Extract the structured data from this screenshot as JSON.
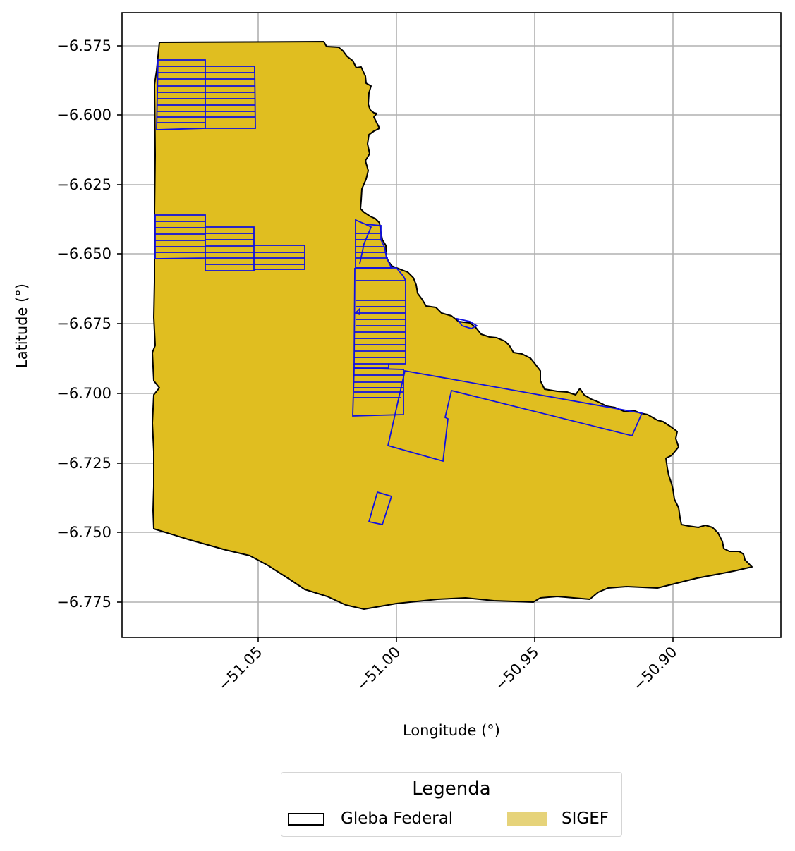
{
  "map": {
    "xlabel": "Longitude (°)",
    "ylabel": "Latitude (°)",
    "x_ticks": [
      "−51.05",
      "−51.00",
      "−50.95",
      "−50.90"
    ],
    "y_ticks": [
      "−6.575",
      "−6.600",
      "−6.625",
      "−6.650",
      "−6.675",
      "−6.700",
      "−6.725",
      "−6.750",
      "−6.775"
    ],
    "grid": true,
    "colors": {
      "gleba_fill": "#e0be20",
      "gleba_edge": "#000000",
      "sigef_edge": "#1010e0",
      "legend_sigef": "#e6d37a",
      "grid": "#b0b0b0"
    }
  },
  "legend": {
    "title": "Legenda",
    "items": [
      {
        "label": "Gleba Federal",
        "style": "outline"
      },
      {
        "label": "SIGEF",
        "style": "fill"
      }
    ]
  }
}
